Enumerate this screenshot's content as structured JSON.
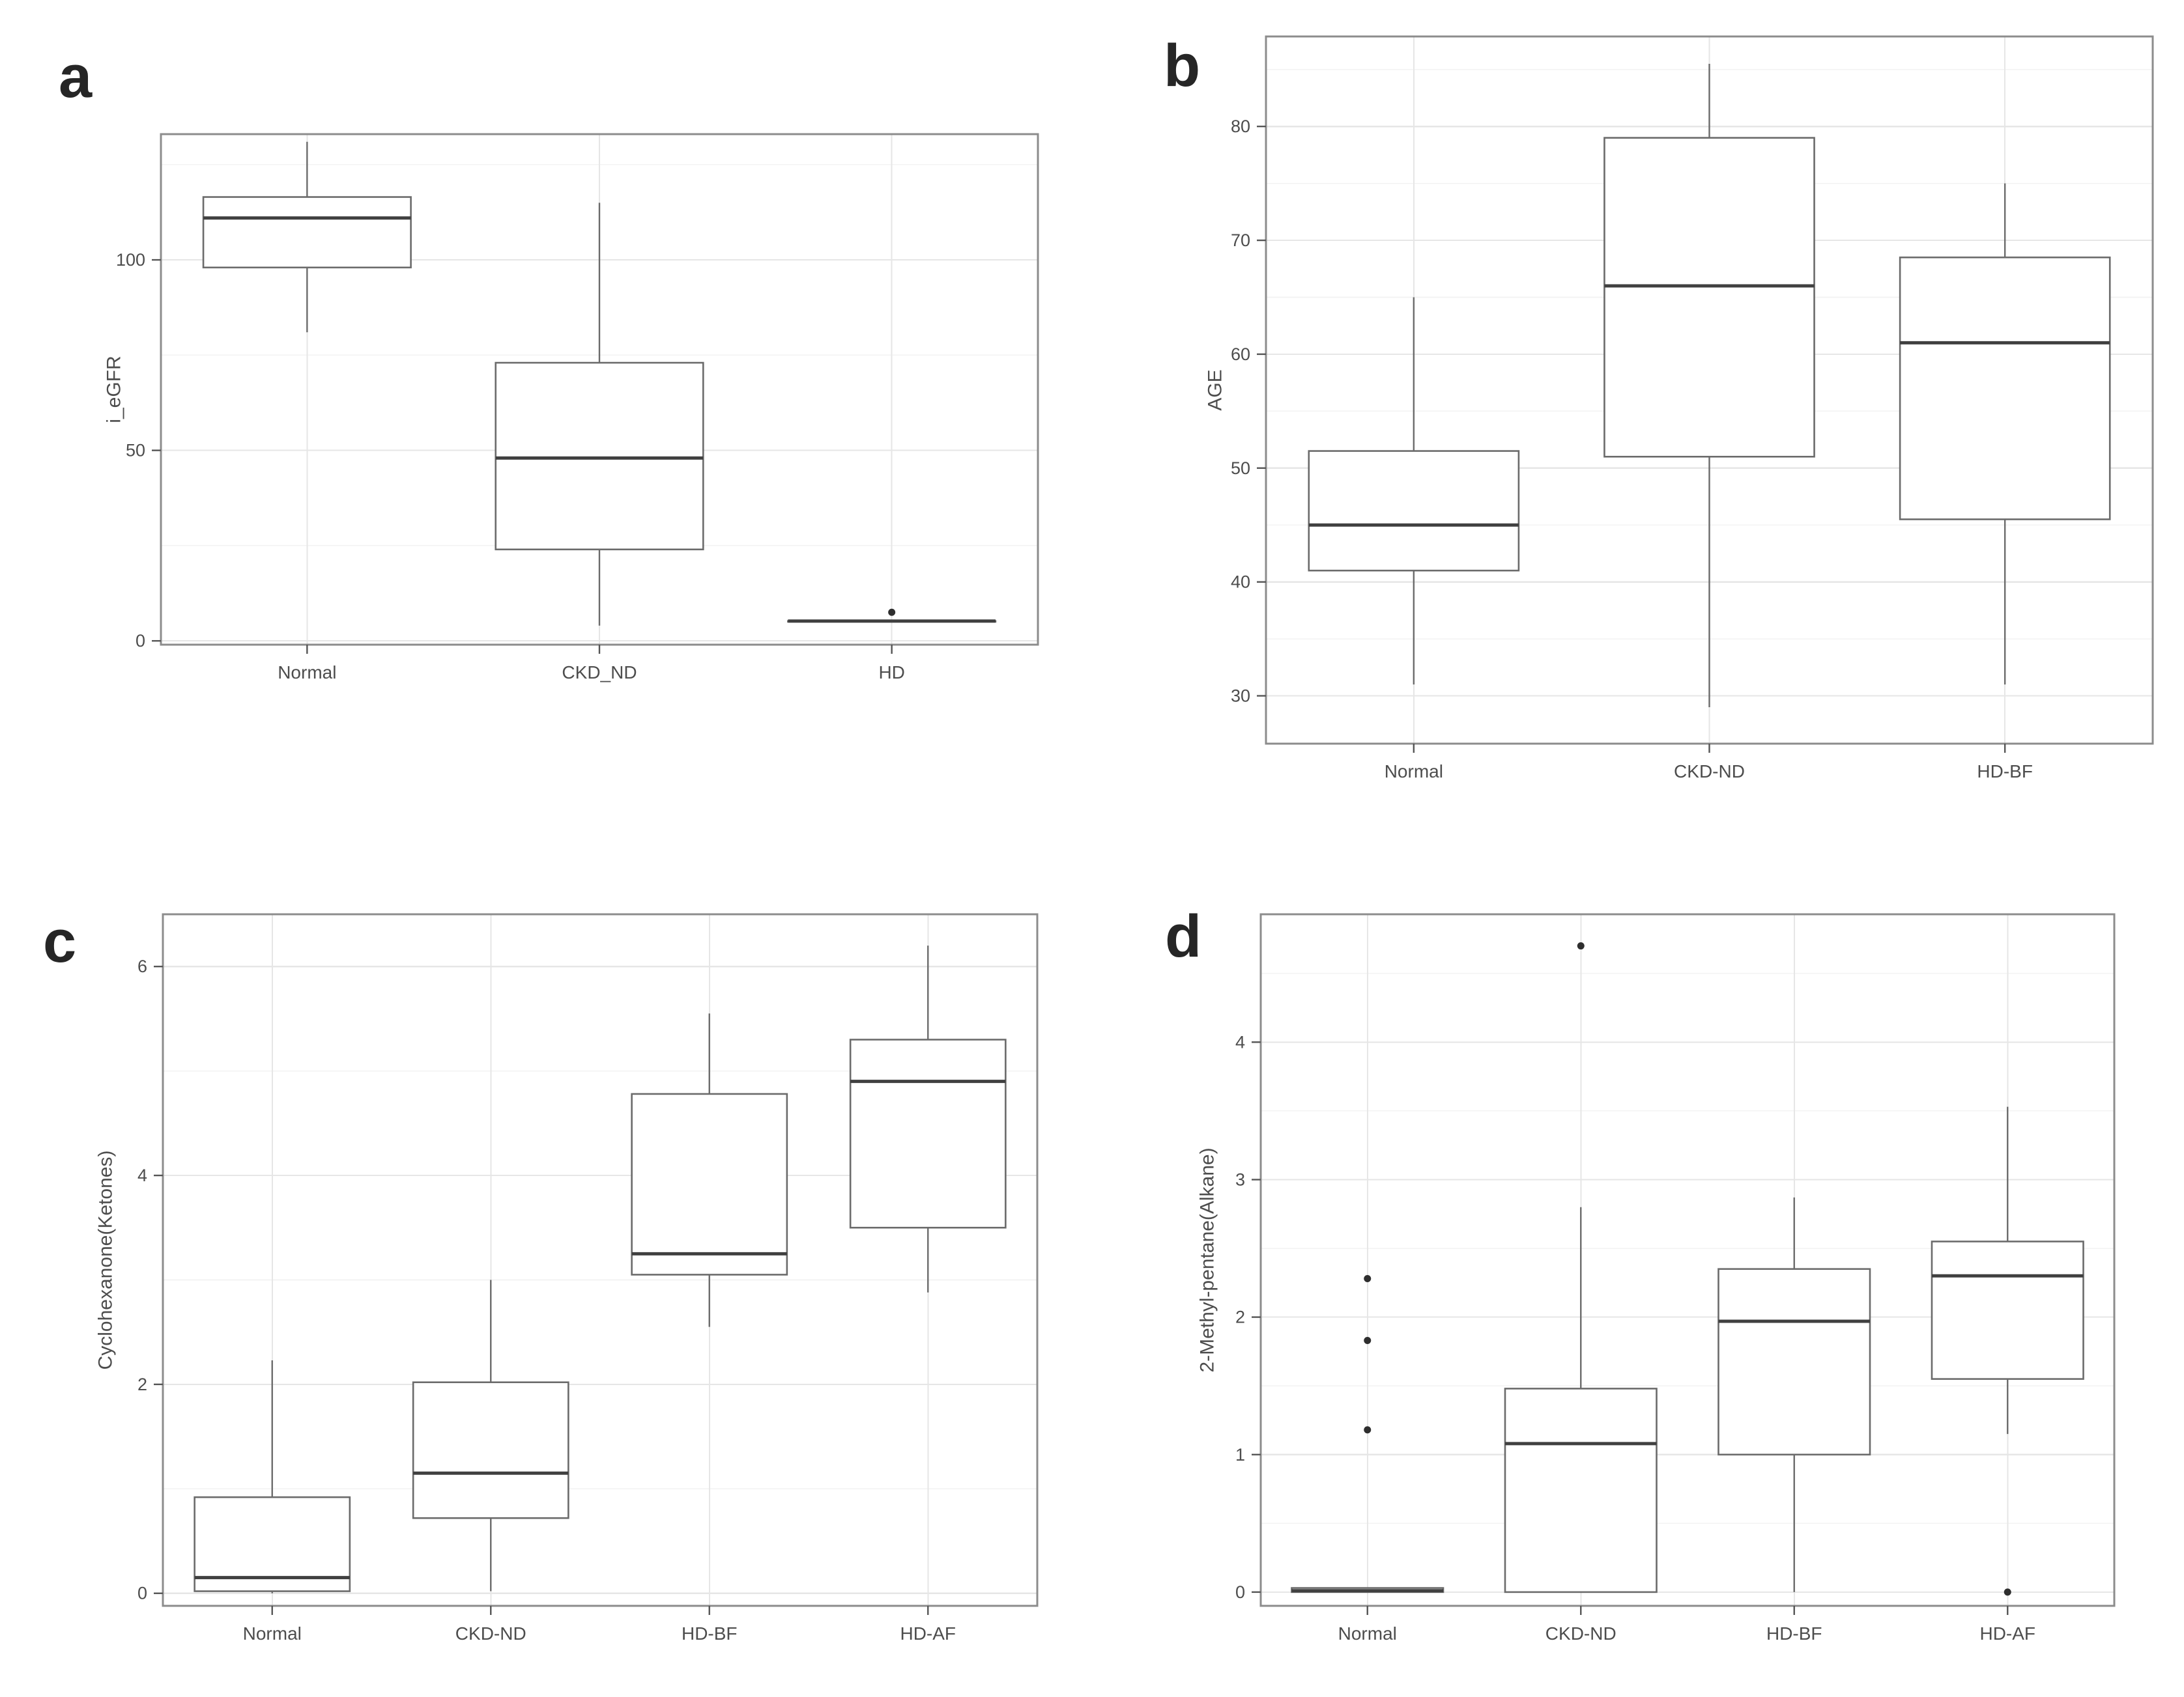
{
  "style": {
    "background": "#ffffff",
    "panel_border": "#8c8c8c",
    "grid_major": "#e6e6e6",
    "grid_minor": "#f3f3f3",
    "box_stroke": "#6b6b6b",
    "median_color": "#404040",
    "whisker_color": "#6b6b6b",
    "outlier_color": "#2e2e2e",
    "text_color": "#4d4d4d",
    "tick_color": "#555555",
    "letter_color": "#262626"
  },
  "chart_data": [
    {
      "id": "a",
      "panel_label": "a",
      "type": "box",
      "title": "",
      "xlabel": "",
      "ylabel": "i_eGFR",
      "ylim": [
        -1,
        133
      ],
      "yticks": [
        0,
        50,
        100
      ],
      "yticks_minor": [
        25,
        75,
        125
      ],
      "grid": true,
      "legend": "none",
      "categories": [
        "Normal",
        "CKD_ND",
        "HD"
      ],
      "boxes": [
        {
          "category": "Normal",
          "low": 81,
          "q1": 98,
          "median": 111,
          "q3": 116.5,
          "high": 131,
          "outliers": []
        },
        {
          "category": "CKD_ND",
          "low": 4,
          "q1": 24,
          "median": 48,
          "q3": 73,
          "high": 115,
          "outliers": []
        },
        {
          "category": "HD",
          "low": 5.2,
          "q1": 5.2,
          "median": 5.2,
          "q3": 5.2,
          "high": 5.2,
          "outliers": [
            7.5
          ]
        }
      ]
    },
    {
      "id": "b",
      "panel_label": "b",
      "type": "box",
      "title": "",
      "xlabel": "",
      "ylabel": "AGE",
      "ylim": [
        25.8,
        87.9
      ],
      "yticks": [
        30,
        40,
        50,
        60,
        70,
        80
      ],
      "yticks_minor": [
        35,
        45,
        55,
        65,
        75,
        85
      ],
      "grid": true,
      "legend": "none",
      "categories": [
        "Normal",
        "CKD-ND",
        "HD-BF"
      ],
      "boxes": [
        {
          "category": "Normal",
          "low": 31,
          "q1": 41,
          "median": 45,
          "q3": 51.5,
          "high": 65,
          "outliers": []
        },
        {
          "category": "CKD-ND",
          "low": 29,
          "q1": 51,
          "median": 66,
          "q3": 79,
          "high": 85.5,
          "outliers": []
        },
        {
          "category": "HD-BF",
          "low": 31,
          "q1": 45.5,
          "median": 61,
          "q3": 68.5,
          "high": 75,
          "outliers": []
        }
      ]
    },
    {
      "id": "c",
      "panel_label": "c",
      "type": "box",
      "title": "",
      "xlabel": "",
      "ylabel": "Cyclohexanone(Ketones)",
      "ylim": [
        -0.12,
        6.5
      ],
      "yticks": [
        0,
        2,
        4,
        6
      ],
      "yticks_minor": [
        1,
        3,
        5
      ],
      "grid": true,
      "legend": "none",
      "categories": [
        "Normal",
        "CKD-ND",
        "HD-BF",
        "HD-AF"
      ],
      "boxes": [
        {
          "category": "Normal",
          "low": 0,
          "q1": 0.02,
          "median": 0.15,
          "q3": 0.92,
          "high": 2.23,
          "outliers": []
        },
        {
          "category": "CKD-ND",
          "low": 0.02,
          "q1": 0.72,
          "median": 1.15,
          "q3": 2.02,
          "high": 3.0,
          "outliers": []
        },
        {
          "category": "HD-BF",
          "low": 2.55,
          "q1": 3.05,
          "median": 3.25,
          "q3": 4.78,
          "high": 5.55,
          "outliers": []
        },
        {
          "category": "HD-AF",
          "low": 2.88,
          "q1": 3.5,
          "median": 4.9,
          "q3": 5.3,
          "high": 6.2,
          "outliers": []
        }
      ]
    },
    {
      "id": "d",
      "panel_label": "d",
      "type": "box",
      "title": "",
      "xlabel": "",
      "ylabel": "2-Methyl-pentane(Alkane)",
      "ylim": [
        -0.1,
        4.93
      ],
      "yticks": [
        0,
        1,
        2,
        3,
        4
      ],
      "yticks_minor": [
        0.5,
        1.5,
        2.5,
        3.5,
        4.5
      ],
      "grid": true,
      "legend": "none",
      "categories": [
        "Normal",
        "CKD-ND",
        "HD-BF",
        "HD-AF"
      ],
      "boxes": [
        {
          "category": "Normal",
          "low": 0,
          "q1": 0,
          "median": 0.01,
          "q3": 0.03,
          "high": 0.03,
          "outliers": [
            2.28,
            1.83,
            1.18
          ]
        },
        {
          "category": "CKD-ND",
          "low": 0,
          "q1": 0,
          "median": 1.08,
          "q3": 1.48,
          "high": 2.8,
          "outliers": [
            4.7
          ]
        },
        {
          "category": "HD-BF",
          "low": 0,
          "q1": 1.0,
          "median": 1.97,
          "q3": 2.35,
          "high": 2.87,
          "outliers": []
        },
        {
          "category": "HD-AF",
          "low": 1.15,
          "q1": 1.55,
          "median": 2.3,
          "q3": 2.55,
          "high": 3.53,
          "outliers": [
            0
          ]
        }
      ]
    }
  ]
}
